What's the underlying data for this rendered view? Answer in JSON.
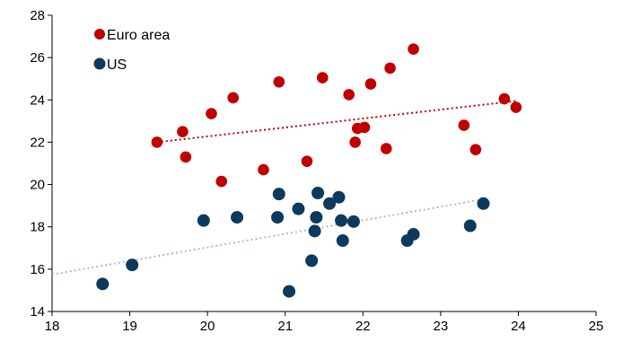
{
  "chart_data": {
    "type": "scatter",
    "xlim": [
      18,
      25
    ],
    "ylim": [
      14,
      28
    ],
    "x_ticks": [
      18,
      19,
      20,
      21,
      22,
      23,
      24,
      25
    ],
    "y_ticks": [
      14,
      16,
      18,
      20,
      22,
      24,
      26,
      28
    ],
    "grid": false,
    "legend_position": "top-left",
    "series": [
      {
        "name": "Euro area",
        "color": "#c00000",
        "points": [
          [
            19.35,
            22.0
          ],
          [
            19.68,
            22.5
          ],
          [
            19.72,
            21.3
          ],
          [
            20.05,
            23.35
          ],
          [
            20.18,
            20.15
          ],
          [
            20.33,
            24.1
          ],
          [
            20.72,
            20.7
          ],
          [
            20.92,
            24.85
          ],
          [
            21.28,
            21.1
          ],
          [
            21.48,
            25.05
          ],
          [
            21.82,
            24.25
          ],
          [
            21.9,
            22.0
          ],
          [
            21.93,
            22.65
          ],
          [
            22.02,
            22.7
          ],
          [
            22.1,
            24.75
          ],
          [
            22.3,
            21.7
          ],
          [
            22.35,
            25.5
          ],
          [
            22.65,
            26.4
          ],
          [
            23.3,
            22.8
          ],
          [
            23.45,
            21.65
          ],
          [
            23.82,
            24.05
          ],
          [
            23.97,
            23.65
          ]
        ],
        "trend": {
          "x": [
            19.35,
            23.97
          ],
          "y": [
            22.0,
            23.95
          ]
        }
      },
      {
        "name": "US",
        "color": "#0d3a5c",
        "points": [
          [
            18.65,
            15.3
          ],
          [
            19.03,
            16.2
          ],
          [
            19.95,
            18.3
          ],
          [
            20.38,
            18.45
          ],
          [
            20.9,
            18.45
          ],
          [
            20.92,
            19.55
          ],
          [
            21.05,
            14.95
          ],
          [
            21.17,
            18.85
          ],
          [
            21.34,
            16.4
          ],
          [
            21.38,
            17.8
          ],
          [
            21.4,
            18.45
          ],
          [
            21.42,
            19.6
          ],
          [
            21.57,
            19.1
          ],
          [
            21.69,
            19.4
          ],
          [
            21.72,
            18.3
          ],
          [
            21.74,
            17.35
          ],
          [
            21.88,
            18.25
          ],
          [
            22.57,
            17.35
          ],
          [
            22.65,
            17.65
          ],
          [
            23.38,
            18.05
          ],
          [
            23.55,
            19.1
          ]
        ],
        "trend": {
          "x": [
            18.0,
            23.55
          ],
          "y": [
            15.75,
            19.3
          ]
        }
      }
    ]
  }
}
